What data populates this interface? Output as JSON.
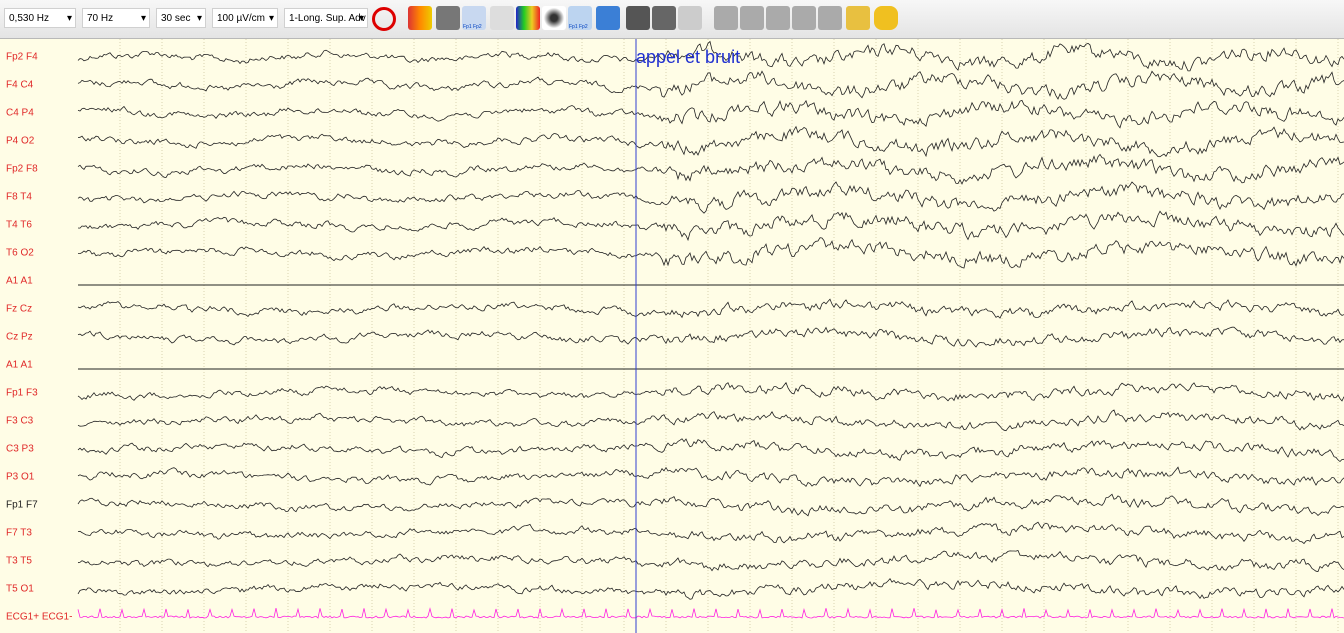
{
  "toolbar": {
    "dropdowns": [
      "0,530 Hz",
      "70 Hz",
      "30 sec",
      "100 µV/cm",
      "1-Long. Sup. Adv"
    ],
    "icon_labels": [
      "Fp1 Fp2",
      "Fp1 Fp2"
    ]
  },
  "channels": [
    "Fp2 F4",
    "F4 C4",
    "C4 P4",
    "P4 O2",
    "Fp2 F8",
    "F8 T4",
    "T4 T6",
    "T6 O2",
    "A1 A1",
    "Fz Cz",
    "Cz Pz",
    "A1 A1",
    "Fp1 F3",
    "F3 C3",
    "C3 P3",
    "P3 O1",
    "Fp1 F7",
    "F7 T3",
    "T3 T5",
    "T5 O1",
    "ECG1+ ECG1-"
  ],
  "annotation": "appel et bruit"
}
